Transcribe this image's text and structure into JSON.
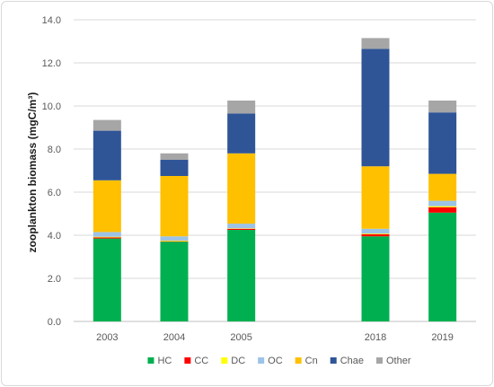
{
  "chart_data": {
    "type": "bar",
    "stacked": true,
    "title": "",
    "xlabel": "",
    "ylabel": "zooplankton biomass (mgC/m³)",
    "ylim": [
      0,
      14
    ],
    "yticks": [
      "0.0",
      "2.0",
      "4.0",
      "6.0",
      "8.0",
      "10.0",
      "12.0",
      "14.0"
    ],
    "grid": true,
    "legend_position": "bottom",
    "categories": [
      "2003",
      "2004",
      "2005",
      "",
      "2018",
      "2019"
    ],
    "series": [
      {
        "name": "HC",
        "color": "#00b050",
        "values": [
          3.85,
          3.7,
          4.25,
          null,
          3.95,
          5.05
        ]
      },
      {
        "name": "CC",
        "color": "#ff0000",
        "values": [
          0.05,
          0.02,
          0.05,
          null,
          0.1,
          0.25
        ]
      },
      {
        "name": "DC",
        "color": "#ffff00",
        "values": [
          0.03,
          0.03,
          0.02,
          null,
          0.03,
          0.05
        ]
      },
      {
        "name": "OC",
        "color": "#9dc3e6",
        "values": [
          0.22,
          0.2,
          0.22,
          null,
          0.22,
          0.25
        ]
      },
      {
        "name": "Cn",
        "color": "#ffc000",
        "values": [
          2.4,
          2.8,
          3.26,
          null,
          2.9,
          1.25
        ]
      },
      {
        "name": "Chae",
        "color": "#2f5597",
        "values": [
          2.3,
          0.75,
          1.85,
          null,
          5.45,
          2.85
        ]
      },
      {
        "name": "Other",
        "color": "#a6a6a6",
        "values": [
          0.5,
          0.3,
          0.6,
          null,
          0.5,
          0.55
        ]
      }
    ]
  }
}
